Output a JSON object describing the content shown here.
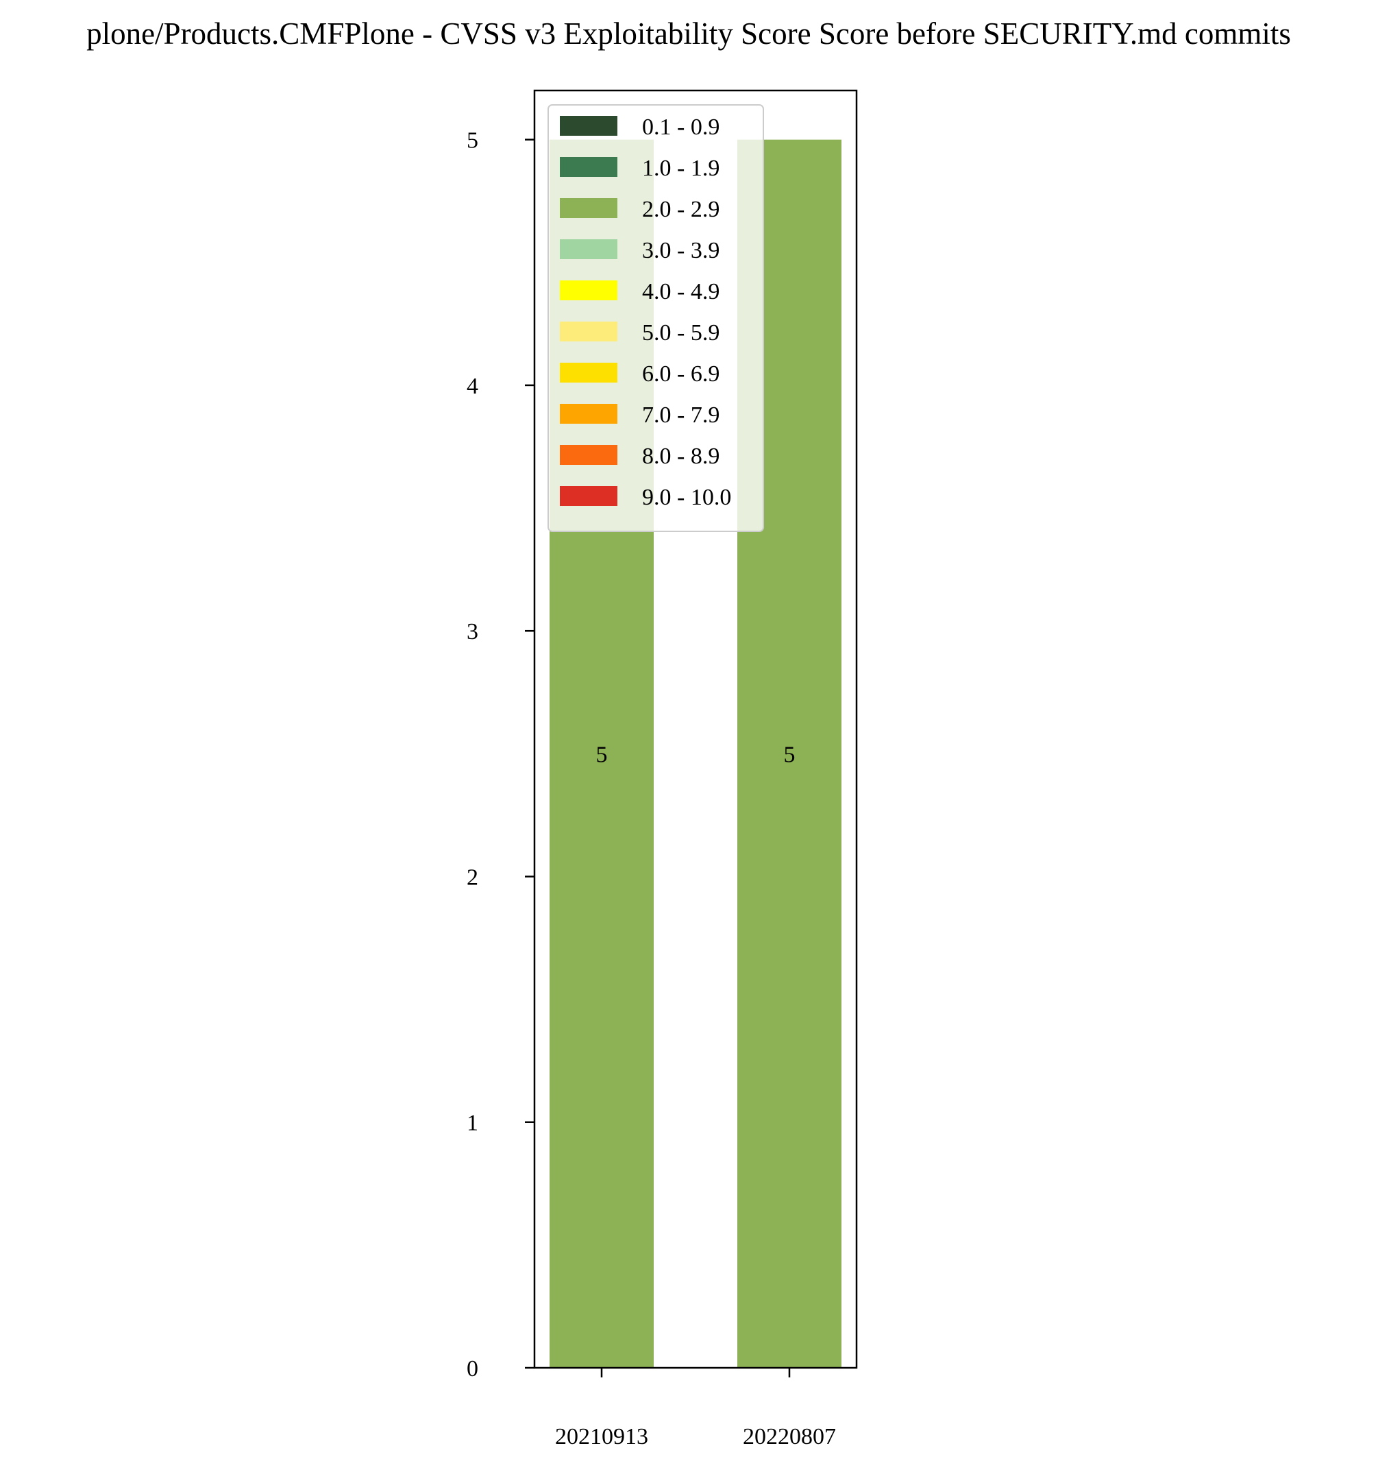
{
  "chart_data": {
    "type": "bar",
    "stacked": true,
    "title": "plone/Products.CMFPlone - CVSS v3 Exploitability Score Score before SECURITY.md commits",
    "xlabel": "",
    "ylabel": "",
    "categories": [
      "20210913",
      "20220807"
    ],
    "ylim": [
      0,
      5.2
    ],
    "yticks": [
      0,
      1,
      2,
      3,
      4,
      5
    ],
    "grid": false,
    "legend_position": "top-left",
    "series": [
      {
        "name": "0.1 - 0.9",
        "color": "#2c4a2d",
        "values": [
          0,
          0
        ]
      },
      {
        "name": "1.0 - 1.9",
        "color": "#3c7a50",
        "values": [
          0,
          0
        ]
      },
      {
        "name": "2.0 - 2.9",
        "color": "#8db255",
        "values": [
          5,
          5
        ]
      },
      {
        "name": "3.0 - 3.9",
        "color": "#a0d4a0",
        "values": [
          0,
          0
        ]
      },
      {
        "name": "4.0 - 4.9",
        "color": "#ffff00",
        "values": [
          0,
          0
        ]
      },
      {
        "name": "5.0 - 5.9",
        "color": "#fdec7a",
        "values": [
          0,
          0
        ]
      },
      {
        "name": "6.0 - 6.9",
        "color": "#fde000",
        "values": [
          0,
          0
        ]
      },
      {
        "name": "7.0 - 7.9",
        "color": "#fea500",
        "values": [
          0,
          0
        ]
      },
      {
        "name": "8.0 - 8.9",
        "color": "#fb6a0f",
        "values": [
          0,
          0
        ]
      },
      {
        "name": "9.0 - 10.0",
        "color": "#dd2f23",
        "values": [
          0,
          0
        ]
      }
    ],
    "data_labels": [
      {
        "category": "20210913",
        "text": "5"
      },
      {
        "category": "20220807",
        "text": "5"
      }
    ]
  }
}
